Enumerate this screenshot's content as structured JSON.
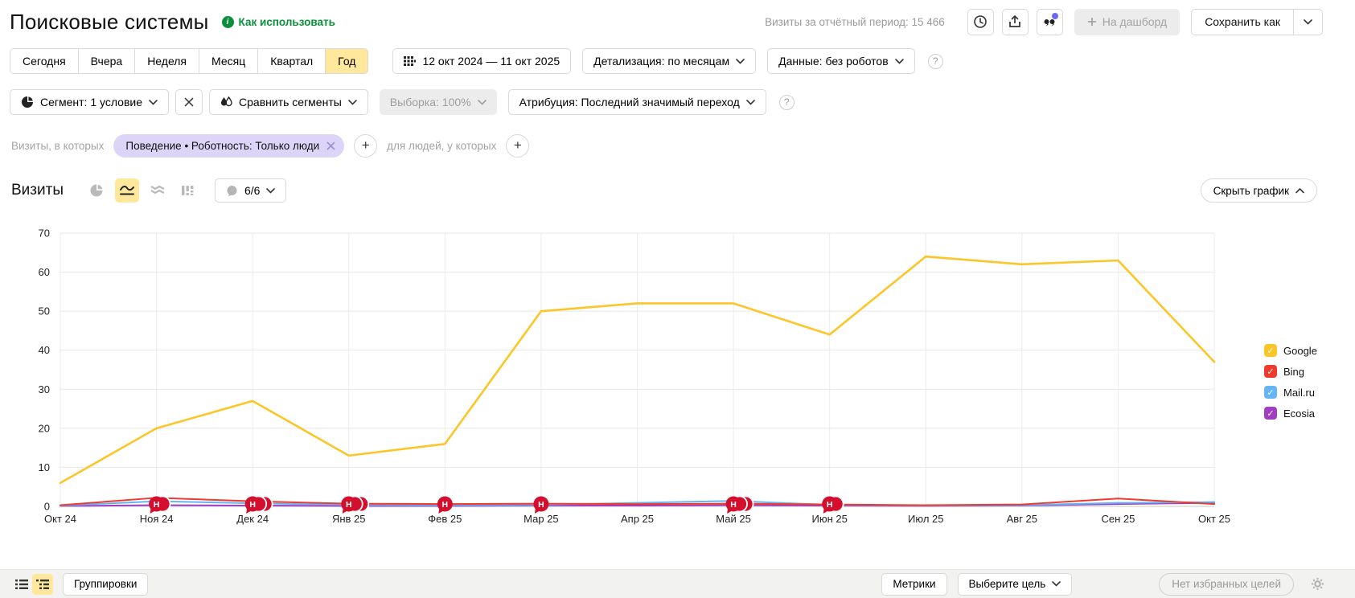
{
  "header": {
    "title": "Поисковые системы",
    "help_link": "Как использовать",
    "visits_summary": "Визиты за отчётный период: 15 466",
    "dashboard_button": "На дашборд",
    "save_as_button": "Сохранить как"
  },
  "period_bar": {
    "presets": [
      "Сегодня",
      "Вчера",
      "Неделя",
      "Месяц",
      "Квартал",
      "Год"
    ],
    "selected_preset": "Год",
    "date_range": "12 окт 2024 — 11 окт 2025",
    "detail_dropdown": "Детализация: по месяцам",
    "data_dropdown": "Данные: без роботов"
  },
  "segment_bar": {
    "segment_dropdown": "Сегмент: 1 условие",
    "compare_button": "Сравнить сегменты",
    "sampling_dropdown": "Выборка: 100%",
    "attribution_dropdown": "Атрибуция: Последний значимый переход"
  },
  "filter_row": {
    "visits_label": "Визиты, в которых",
    "chip": "Поведение • Роботность: Только люди",
    "people_label": "для людей, у которых"
  },
  "chart_header": {
    "title": "Визиты",
    "lines_selector": "6/6",
    "hide_chart_button": "Скрыть график"
  },
  "chart_data": {
    "type": "line",
    "title": "Визиты",
    "categories": [
      "Окт 24",
      "Ноя 24",
      "Дек 24",
      "Янв 25",
      "Фев 25",
      "Мар 25",
      "Апр 25",
      "Май 25",
      "Июн 25",
      "Июл 25",
      "Авг 25",
      "Сен 25",
      "Окт 25"
    ],
    "ylim": [
      0,
      70
    ],
    "yticks": [
      0,
      10,
      20,
      30,
      40,
      50,
      60,
      70
    ],
    "grid": true,
    "legend_position": "right",
    "series": [
      {
        "name": "Google",
        "color": "#fcc629",
        "values": [
          6,
          20,
          27,
          13,
          16,
          50,
          52,
          52,
          44,
          64,
          62,
          63,
          37
        ]
      },
      {
        "name": "Bing",
        "color": "#ee3b2e",
        "values": [
          0.3,
          2.2,
          1.3,
          0.7,
          0.6,
          0.7,
          0.6,
          0.7,
          0.5,
          0.3,
          0.5,
          2.0,
          0.6
        ]
      },
      {
        "name": "Mail.ru",
        "color": "#64b5f6",
        "values": [
          0.2,
          1.3,
          0.8,
          0.4,
          0.3,
          0.4,
          0.9,
          1.4,
          0.4,
          0.2,
          0.3,
          0.9,
          1.1
        ]
      },
      {
        "name": "Ecosia",
        "color": "#a03fc0",
        "values": [
          0.1,
          0.3,
          0.2,
          0.1,
          0.1,
          0.2,
          0.2,
          0.3,
          0.2,
          0.1,
          0.2,
          0.6,
          0.9
        ]
      }
    ],
    "annotations": [
      {
        "category": "Ноя 24",
        "label": "Н",
        "count": 2
      },
      {
        "category": "Дек 24",
        "label": "Н",
        "count": 3
      },
      {
        "category": "Янв 25",
        "label": "Н",
        "count": 3
      },
      {
        "category": "Фев 25",
        "label": "Н",
        "count": 1
      },
      {
        "category": "Мар 25",
        "label": "Н",
        "count": 1
      },
      {
        "category": "Май 25",
        "label": "Н",
        "count": 3
      },
      {
        "category": "Июн 25",
        "label": "Н",
        "count": 2
      }
    ]
  },
  "legend": {
    "items": [
      {
        "label": "Google",
        "color": "#fcc629",
        "checked": true
      },
      {
        "label": "Bing",
        "color": "#ee3b2e",
        "checked": true
      },
      {
        "label": "Mail.ru",
        "color": "#64b5f6",
        "checked": true
      },
      {
        "label": "Ecosia",
        "color": "#a03fc0",
        "checked": true
      }
    ]
  },
  "footer": {
    "groupings_button": "Группировки",
    "metrics_button": "Метрики",
    "goal_button": "Выберите цель",
    "favorites_label": "Нет избранных целей"
  },
  "colors": {
    "accent_selected": "#ffe79b",
    "link_green": "#0b8f3a",
    "chip_purple": "#dcd5f8",
    "annotation_red": "#d40f2e",
    "grid": "#e7e7e7"
  }
}
